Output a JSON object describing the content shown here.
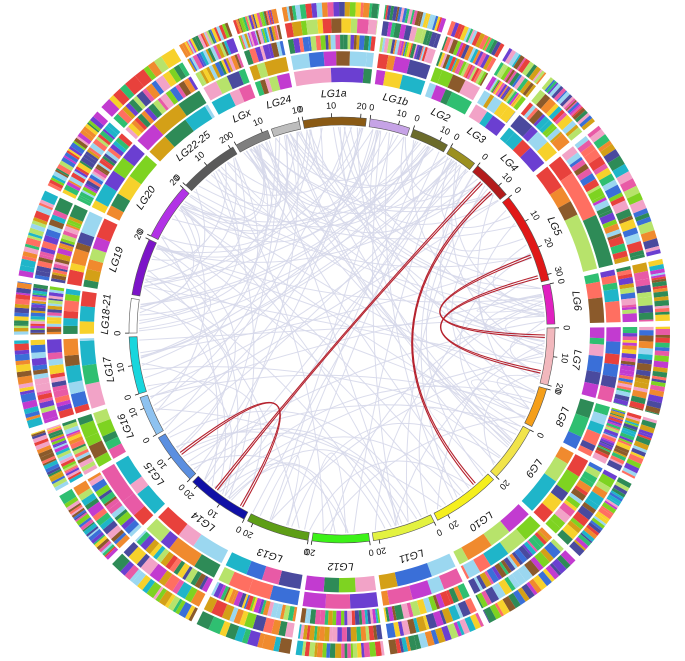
{
  "chromosomes": [
    {
      "name": "LGx",
      "length": 12,
      "color": "#7f7f7f",
      "ticks": [
        0,
        10
      ]
    },
    {
      "name": "LG24",
      "length": 10,
      "color": "#bdbdbd",
      "ticks": [
        10
      ]
    },
    {
      "name": "LG1a",
      "length": 22,
      "color": "#8a5a14",
      "ticks": [
        0,
        10,
        20
      ]
    },
    {
      "name": "LG1b",
      "length": 14,
      "color": "#c6a3e6",
      "ticks": [
        0,
        10
      ]
    },
    {
      "name": "LG2",
      "length": 13,
      "color": "#6b6b2a",
      "ticks": [
        0,
        10
      ]
    },
    {
      "name": "LG3",
      "length": 10,
      "color": "#9b9020",
      "ticks": [
        0
      ]
    },
    {
      "name": "LG4",
      "length": 14,
      "color": "#b31b1b",
      "ticks": [
        0,
        10
      ]
    },
    {
      "name": "LG5",
      "length": 32,
      "color": "#e01818",
      "ticks": [
        0,
        10,
        20,
        30
      ]
    },
    {
      "name": "LG6",
      "length": 14,
      "color": "#e020c0",
      "ticks": [
        0
      ]
    },
    {
      "name": "LG7",
      "length": 20,
      "color": "#f2b8bd",
      "ticks": [
        0,
        10,
        20
      ]
    },
    {
      "name": "LG8",
      "length": 14,
      "color": "#f59f1a",
      "ticks": [
        0
      ]
    },
    {
      "name": "LG9",
      "length": 20,
      "color": "#f1e44a",
      "ticks": [
        0,
        20
      ]
    },
    {
      "name": "LG10",
      "length": 24,
      "color": "#f5ef1e",
      "ticks": [
        20
      ]
    },
    {
      "name": "LG11",
      "length": 22,
      "color": "#e3f240",
      "ticks": [
        0,
        20
      ]
    },
    {
      "name": "LG12",
      "length": 20,
      "color": "#3cf218",
      "ticks": [
        0,
        20
      ]
    },
    {
      "name": "LG13",
      "length": 22,
      "color": "#5e9e16",
      "ticks": [
        0,
        20
      ]
    },
    {
      "name": "LG14",
      "length": 22,
      "color": "#1010a6",
      "ticks": [
        0,
        10,
        20
      ]
    },
    {
      "name": "LG15",
      "length": 18,
      "color": "#5b8fe0",
      "ticks": [
        0,
        10
      ]
    },
    {
      "name": "LG16",
      "length": 14,
      "color": "#8ec2f0",
      "ticks": [
        0,
        10
      ]
    },
    {
      "name": "LG17",
      "length": 20,
      "color": "#18d6dd",
      "ticks": [
        0,
        10
      ]
    },
    {
      "name": "LG18-21",
      "length": 12,
      "color": "#ffffff",
      "ticks": [
        0
      ]
    },
    {
      "name": "LG19",
      "length": 20,
      "color": "#7c14c8",
      "ticks": [
        20
      ]
    },
    {
      "name": "LG20",
      "length": 20,
      "color": "#b232e6",
      "ticks": [
        0,
        20
      ]
    },
    {
      "name": "LG22-25",
      "length": 21,
      "color": "#5a5a5a",
      "ticks": [
        0,
        10,
        20
      ]
    }
  ],
  "highlight_links": [
    {
      "a": "LG4",
      "apos": 5,
      "b": "LG14",
      "bpos": 14
    },
    {
      "a": "LG4",
      "apos": 10,
      "b": "LG10",
      "bpos": 6
    },
    {
      "a": "LG5",
      "apos": 22,
      "b": "LG7",
      "bpos": 3
    },
    {
      "a": "LG7",
      "apos": 16,
      "b": "LG5",
      "bpos": 30
    },
    {
      "a": "LG14",
      "apos": 3,
      "b": "LG15",
      "bpos": 9
    }
  ],
  "colors": {
    "link": "#d6d8ea",
    "highlight": "#b5212d",
    "track_palette": [
      "#e8413c",
      "#f08a2e",
      "#f7d12b",
      "#7ed321",
      "#2fbf71",
      "#1fb5c9",
      "#3a6fd8",
      "#6b3fd1",
      "#c23bd0",
      "#e85aa6",
      "#8b5a2b",
      "#9bd7f0",
      "#b7e36b",
      "#f2a3c7",
      "#4a4a9e",
      "#2e8b57",
      "#d4a017",
      "#ff6f61"
    ]
  }
}
